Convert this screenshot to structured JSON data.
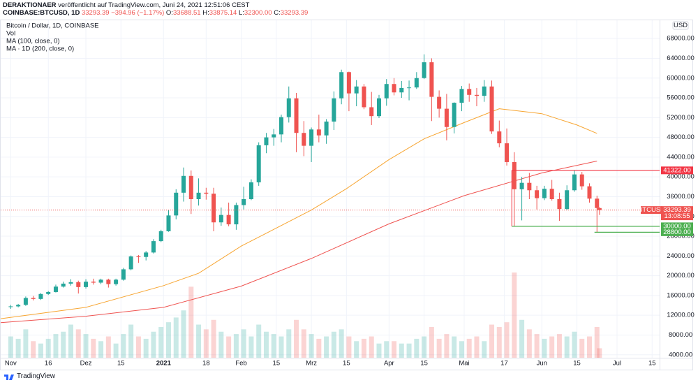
{
  "header": {
    "author": "DERAKTIONAER",
    "published": "veröffentlicht auf TradingView.com, Juni 24, 2021 12:51:06 CEST",
    "symbol": "COINBASE:BTCUSD, 1D",
    "price": "33293.39",
    "change": "−394.96 (−1.17%)",
    "ohlc": [
      {
        "label": "O:",
        "value": "33688.51"
      },
      {
        "label": "H:",
        "value": "33875.14"
      },
      {
        "label": "L:",
        "value": "32300.00"
      },
      {
        "label": "C:",
        "value": "33293.39"
      }
    ]
  },
  "footer": {
    "brand": "TradingView"
  },
  "chart_data": {
    "type": "candlestick",
    "title": "Bitcoin / Dollar, 1D, COINBASE",
    "currency": "USD",
    "up_color": "#26a69a",
    "down_color": "#ef5350",
    "grid": true,
    "xlim": [
      "2020-10-28",
      "2021-07-18"
    ],
    "xticks": [
      {
        "value": "2020-11-01",
        "label": "Nov"
      },
      {
        "value": "2020-11-16",
        "label": "16"
      },
      {
        "value": "2020-12-01",
        "label": "Dez"
      },
      {
        "value": "2020-12-15",
        "label": "15"
      },
      {
        "value": "2021-01-01",
        "label": "2021"
      },
      {
        "value": "2021-01-18",
        "label": "18"
      },
      {
        "value": "2021-02-01",
        "label": "Feb"
      },
      {
        "value": "2021-02-15",
        "label": "15"
      },
      {
        "value": "2021-03-01",
        "label": "Mrz"
      },
      {
        "value": "2021-03-15",
        "label": "15"
      },
      {
        "value": "2021-04-01",
        "label": "Apr"
      },
      {
        "value": "2021-04-15",
        "label": "15"
      },
      {
        "value": "2021-05-01",
        "label": "Mai"
      },
      {
        "value": "2021-05-17",
        "label": "17"
      },
      {
        "value": "2021-06-01",
        "label": "Jun"
      },
      {
        "value": "2021-06-15",
        "label": "15"
      },
      {
        "value": "2021-07-01",
        "label": "Jul"
      },
      {
        "value": "2021-07-15",
        "label": "15"
      }
    ],
    "ylim": [
      3400,
      71700
    ],
    "yticks": [
      {
        "value": 4000,
        "label": "4000.00"
      },
      {
        "value": 8000,
        "label": "8000.00"
      },
      {
        "value": 12000,
        "label": "12000.00"
      },
      {
        "value": 16000,
        "label": "16000.00"
      },
      {
        "value": 20000,
        "label": "20000.00"
      },
      {
        "value": 24000,
        "label": "24000.00"
      },
      {
        "value": 28000,
        "label": "28000.00"
      },
      {
        "value": 32000,
        "label": "32000.00"
      },
      {
        "value": 36000,
        "label": "36000.00"
      },
      {
        "value": 40000,
        "label": "40000.00"
      },
      {
        "value": 44000,
        "label": "44000.00"
      },
      {
        "value": 48000,
        "label": "48000.00"
      },
      {
        "value": 52000,
        "label": "52000.00"
      },
      {
        "value": 56000,
        "label": "56000.00"
      },
      {
        "value": 60000,
        "label": "60000.00"
      },
      {
        "value": 64000,
        "label": "64000.00"
      },
      {
        "value": 68000,
        "label": "68000.00"
      }
    ],
    "x": [
      "2020-11-01",
      "2020-11-04",
      "2020-11-07",
      "2020-11-10",
      "2020-11-13",
      "2020-11-16",
      "2020-11-19",
      "2020-11-22",
      "2020-11-25",
      "2020-11-28",
      "2020-12-01",
      "2020-12-04",
      "2020-12-07",
      "2020-12-10",
      "2020-12-13",
      "2020-12-16",
      "2020-12-19",
      "2020-12-22",
      "2020-12-25",
      "2020-12-28",
      "2020-12-31",
      "2021-01-03",
      "2021-01-06",
      "2021-01-09",
      "2021-01-12",
      "2021-01-15",
      "2021-01-18",
      "2021-01-21",
      "2021-01-24",
      "2021-01-27",
      "2021-01-30",
      "2021-02-02",
      "2021-02-05",
      "2021-02-08",
      "2021-02-11",
      "2021-02-14",
      "2021-02-17",
      "2021-02-20",
      "2021-02-23",
      "2021-02-26",
      "2021-03-01",
      "2021-03-04",
      "2021-03-07",
      "2021-03-10",
      "2021-03-13",
      "2021-03-16",
      "2021-03-19",
      "2021-03-22",
      "2021-03-25",
      "2021-03-28",
      "2021-03-31",
      "2021-04-03",
      "2021-04-06",
      "2021-04-09",
      "2021-04-12",
      "2021-04-15",
      "2021-04-18",
      "2021-04-21",
      "2021-04-24",
      "2021-04-27",
      "2021-04-30",
      "2021-05-03",
      "2021-05-06",
      "2021-05-09",
      "2021-05-12",
      "2021-05-15",
      "2021-05-18",
      "2021-05-21",
      "2021-05-24",
      "2021-05-27",
      "2021-05-30",
      "2021-06-02",
      "2021-06-05",
      "2021-06-08",
      "2021-06-11",
      "2021-06-14",
      "2021-06-17",
      "2021-06-20",
      "2021-06-23",
      "2021-06-24"
    ],
    "open": [
      13700,
      13800,
      14100,
      15500,
      15300,
      16300,
      16700,
      17800,
      18400,
      18700,
      17700,
      18800,
      18600,
      19200,
      18300,
      19200,
      21300,
      23900,
      23800,
      24700,
      27000,
      29000,
      32200,
      36800,
      40200,
      35500,
      36800,
      36600,
      30800,
      32300,
      30400,
      34300,
      35500,
      38900,
      46400,
      48000,
      48600,
      52100,
      55900,
      48900,
      46300,
      49600,
      48400,
      51200,
      55900,
      61200,
      56900,
      58300,
      54100,
      52300,
      55900,
      58800,
      57100,
      58000,
      58100,
      60000,
      63200,
      56200,
      53800,
      50100,
      55000,
      57800,
      56600,
      56400,
      58300,
      49200,
      46800,
      43000,
      37500,
      38800,
      37300,
      35700,
      37600,
      35500,
      33500,
      37300,
      40500,
      38100,
      35600,
      33688.51
    ],
    "high": [
      14100,
      14300,
      15800,
      15900,
      16500,
      16900,
      18200,
      18800,
      19300,
      19000,
      19300,
      19400,
      19400,
      19400,
      19400,
      21600,
      24100,
      24200,
      25000,
      27400,
      29300,
      33300,
      37500,
      41900,
      41300,
      39700,
      37800,
      37800,
      33800,
      34800,
      34800,
      38000,
      39500,
      47000,
      48900,
      49700,
      52600,
      58300,
      57000,
      51300,
      50000,
      52600,
      51700,
      57300,
      61700,
      61300,
      59600,
      58800,
      57200,
      56600,
      59800,
      60000,
      59400,
      59500,
      61200,
      64800,
      64000,
      57500,
      56800,
      55100,
      58400,
      58900,
      58000,
      59600,
      59500,
      51400,
      49800,
      45000,
      40000,
      40800,
      38200,
      38200,
      39400,
      36800,
      38300,
      41300,
      41000,
      38700,
      36200,
      33875.14
    ],
    "low": [
      13300,
      13600,
      13900,
      15000,
      15100,
      16100,
      16600,
      17600,
      18000,
      16400,
      17400,
      18200,
      18300,
      17600,
      18000,
      19000,
      21100,
      22600,
      23100,
      24500,
      26800,
      28900,
      31400,
      35000,
      32500,
      34200,
      35400,
      29000,
      30100,
      30000,
      29300,
      33400,
      35300,
      38200,
      44800,
      46300,
      47000,
      51000,
      45000,
      44200,
      43000,
      47000,
      46700,
      49500,
      54700,
      53300,
      54300,
      53700,
      50500,
      51900,
      54400,
      56500,
      56000,
      55500,
      57800,
      59800,
      51300,
      52000,
      47400,
      48800,
      53300,
      55200,
      54300,
      55200,
      48700,
      46000,
      42300,
      30000,
      31200,
      35500,
      33400,
      35300,
      35200,
      31100,
      33300,
      37000,
      37400,
      34800,
      28800,
      32300
    ],
    "close": [
      13800,
      14100,
      15500,
      15300,
      16300,
      16700,
      17800,
      18400,
      18700,
      17700,
      18800,
      18600,
      19200,
      18300,
      19200,
      21300,
      23900,
      23800,
      24700,
      27000,
      29000,
      32200,
      36800,
      40200,
      35500,
      36800,
      36600,
      30800,
      32300,
      30400,
      34300,
      35500,
      38900,
      46400,
      48000,
      48600,
      52100,
      55900,
      48900,
      46300,
      49600,
      48400,
      51200,
      55900,
      61200,
      56900,
      58300,
      54100,
      52300,
      55900,
      58800,
      57100,
      58000,
      58100,
      60000,
      63200,
      56200,
      53800,
      50100,
      55000,
      57800,
      56600,
      56400,
      58300,
      49200,
      46800,
      43000,
      37500,
      38800,
      37300,
      35700,
      37600,
      35500,
      33500,
      37300,
      40500,
      38100,
      35600,
      33700,
      33293.39
    ],
    "volume": {
      "name": "Vol",
      "values": [
        9,
        8,
        12,
        7,
        6,
        8,
        10,
        11,
        14,
        12,
        10,
        8,
        7,
        9,
        6,
        10,
        14,
        9,
        8,
        11,
        13,
        15,
        17,
        20,
        30,
        14,
        12,
        16,
        11,
        9,
        10,
        12,
        9,
        14,
        11,
        10,
        9,
        12,
        16,
        12,
        10,
        8,
        9,
        11,
        12,
        9,
        7,
        8,
        9,
        6,
        7,
        7,
        6,
        6,
        8,
        9,
        13,
        8,
        10,
        9,
        7,
        8,
        9,
        7,
        14,
        13,
        15,
        36,
        16,
        12,
        10,
        8,
        9,
        10,
        9,
        11,
        8,
        9,
        13,
        4
      ]
    },
    "series": [
      {
        "name": "MA (100, close, 0)",
        "color": "#f7a531",
        "x": [
          "2020-10-28",
          "2020-12-01",
          "2021-01-01",
          "2021-01-15",
          "2021-02-01",
          "2021-03-01",
          "2021-03-15",
          "2021-04-01",
          "2021-04-15",
          "2021-05-01",
          "2021-05-15",
          "2021-06-01",
          "2021-06-15",
          "2021-06-23"
        ],
        "values": [
          11300,
          13600,
          18000,
          20500,
          26000,
          33300,
          37600,
          43500,
          47700,
          51000,
          53800,
          52800,
          50500,
          48800
        ]
      },
      {
        "name": "MA · 1D (200, close, 0)",
        "color": "#ef5350",
        "x": [
          "2020-10-28",
          "2020-12-01",
          "2021-01-01",
          "2021-02-01",
          "2021-03-01",
          "2021-04-01",
          "2021-05-01",
          "2021-06-01",
          "2021-06-23"
        ],
        "values": [
          10500,
          11800,
          13600,
          17900,
          23500,
          30500,
          36200,
          40800,
          43200
        ]
      }
    ],
    "levels": [
      {
        "value": 41322,
        "label": "41322.00",
        "color": "#f23645",
        "start": "2021-05-20"
      },
      {
        "value": 30000,
        "label": "30000.00",
        "color": "#4caf50",
        "start": "2021-05-20"
      },
      {
        "value": 28800,
        "label": "28800.00",
        "color": "#4caf50",
        "start": "2021-06-22"
      }
    ],
    "last": {
      "symbol": "BTCUSD",
      "value": 33293.39,
      "label": "33293.39",
      "countdown": "13:08:55",
      "color": "#ef5350"
    }
  }
}
